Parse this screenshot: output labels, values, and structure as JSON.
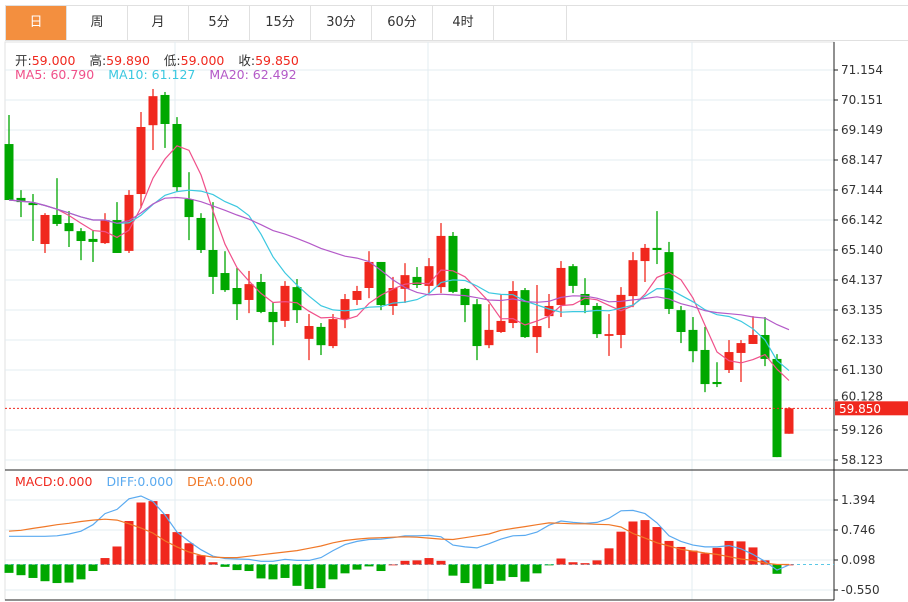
{
  "tabs": [
    {
      "label": "日",
      "active": true
    },
    {
      "label": "周",
      "active": false
    },
    {
      "label": "月",
      "active": false
    },
    {
      "label": "5分",
      "active": false
    },
    {
      "label": "15分",
      "active": false
    },
    {
      "label": "30分",
      "active": false
    },
    {
      "label": "60分",
      "active": false
    },
    {
      "label": "4时",
      "active": false
    }
  ],
  "ohlc_info": {
    "open_label": "开:",
    "open": "59.000",
    "high_label": "高:",
    "high": "59.890",
    "low_label": "低:",
    "low": "59.000",
    "close_label": "收:",
    "close": "59.850"
  },
  "ma_info": {
    "ma5": "MA5: 60.790",
    "ma10": "MA10: 61.127",
    "ma20": "MA20: 62.492"
  },
  "macd_info": {
    "macd": "MACD:0.000",
    "diff": "DIFF:0.000",
    "dea": "DEA:0.000"
  },
  "current_price_label": "59.850",
  "colors": {
    "up": "#f0281e",
    "down": "#00a800",
    "ma5": "#f0508a",
    "ma10": "#3cc8e0",
    "ma20": "#b45ac8",
    "diff": "#5aaaf0",
    "dea": "#f07828",
    "active_tab": "#f38f3f"
  },
  "chart_data": [
    {
      "type": "candlestick",
      "y_ticks": [
        "71.154",
        "70.151",
        "69.149",
        "68.147",
        "67.144",
        "66.142",
        "65.140",
        "64.137",
        "63.135",
        "62.133",
        "61.130",
        "60.128",
        "59.126",
        "58.123"
      ],
      "ylim": [
        58.123,
        71.154
      ],
      "grid": true,
      "moving_averages": [
        5,
        10,
        20
      ],
      "current_price": 59.85,
      "candles": [
        [
          68.68,
          69.65,
          66.81,
          66.81
        ],
        [
          66.88,
          67.14,
          66.24,
          66.74
        ],
        [
          66.71,
          67.01,
          65.44,
          66.64
        ],
        [
          65.34,
          66.37,
          65.04,
          66.31
        ],
        [
          66.31,
          67.54,
          65.94,
          66.01
        ],
        [
          66.04,
          66.44,
          65.24,
          65.77
        ],
        [
          65.77,
          65.87,
          64.8,
          65.44
        ],
        [
          65.51,
          65.81,
          64.74,
          65.41
        ],
        [
          65.37,
          66.37,
          65.34,
          66.14
        ],
        [
          66.14,
          66.74,
          65.04,
          65.04
        ],
        [
          65.11,
          67.14,
          65.04,
          66.98
        ],
        [
          67.01,
          69.75,
          66.54,
          69.25
        ],
        [
          69.31,
          70.52,
          68.48,
          70.28
        ],
        [
          70.32,
          70.42,
          68.55,
          69.35
        ],
        [
          69.35,
          69.58,
          67.08,
          67.24
        ],
        [
          66.84,
          67.74,
          65.47,
          66.24
        ],
        [
          66.21,
          66.37,
          65.04,
          65.14
        ],
        [
          65.14,
          66.74,
          63.67,
          64.24
        ],
        [
          64.37,
          65.1,
          63.74,
          63.8
        ],
        [
          63.87,
          64.54,
          62.8,
          63.33
        ],
        [
          63.47,
          64.44,
          63.03,
          64.0
        ],
        [
          64.07,
          64.34,
          63.03,
          63.07
        ],
        [
          63.07,
          63.4,
          61.96,
          62.73
        ],
        [
          62.77,
          64.1,
          62.57,
          63.94
        ],
        [
          63.9,
          64.17,
          62.7,
          63.13
        ],
        [
          62.17,
          63.0,
          61.46,
          62.6
        ],
        [
          62.57,
          62.7,
          61.63,
          61.96
        ],
        [
          61.93,
          63.0,
          61.86,
          62.83
        ],
        [
          62.83,
          63.67,
          62.53,
          63.5
        ],
        [
          63.47,
          63.94,
          63.3,
          63.77
        ],
        [
          63.87,
          65.1,
          63.53,
          64.74
        ],
        [
          64.74,
          64.74,
          63.13,
          63.3
        ],
        [
          63.27,
          64.24,
          62.97,
          63.87
        ],
        [
          63.84,
          64.7,
          63.37,
          64.3
        ],
        [
          64.24,
          64.57,
          63.87,
          63.97
        ],
        [
          63.94,
          64.87,
          63.7,
          64.6
        ],
        [
          63.9,
          66.04,
          63.7,
          65.61
        ],
        [
          65.61,
          65.74,
          63.7,
          63.74
        ],
        [
          63.84,
          63.87,
          62.73,
          63.3
        ],
        [
          63.33,
          63.5,
          61.46,
          61.93
        ],
        [
          61.96,
          63.33,
          61.86,
          62.47
        ],
        [
          62.4,
          63.67,
          62.37,
          62.77
        ],
        [
          62.7,
          64.1,
          62.53,
          63.77
        ],
        [
          63.8,
          63.87,
          62.2,
          62.23
        ],
        [
          62.23,
          63.97,
          61.7,
          62.6
        ],
        [
          62.93,
          63.67,
          62.53,
          63.27
        ],
        [
          63.3,
          64.77,
          62.9,
          64.54
        ],
        [
          64.6,
          64.67,
          63.7,
          63.94
        ],
        [
          63.67,
          64.2,
          63.03,
          63.3
        ],
        [
          63.27,
          63.37,
          62.2,
          62.33
        ],
        [
          62.27,
          63.0,
          61.6,
          62.33
        ],
        [
          62.3,
          63.9,
          61.86,
          63.64
        ],
        [
          63.6,
          65.07,
          63.23,
          64.8
        ],
        [
          64.77,
          65.34,
          64.07,
          65.21
        ],
        [
          65.21,
          66.44,
          64.67,
          65.14
        ],
        [
          65.07,
          65.41,
          63.0,
          63.17
        ],
        [
          63.13,
          63.27,
          62.03,
          62.4
        ],
        [
          62.47,
          62.9,
          61.39,
          61.76
        ],
        [
          61.8,
          62.57,
          60.39,
          60.66
        ],
        [
          60.73,
          61.39,
          60.56,
          60.66
        ],
        [
          61.13,
          62.13,
          61.03,
          61.73
        ],
        [
          61.7,
          62.13,
          60.73,
          62.03
        ],
        [
          62.0,
          62.93,
          62.0,
          62.3
        ],
        [
          62.3,
          62.9,
          61.26,
          61.5
        ],
        [
          61.5,
          61.66,
          58.22,
          58.22
        ],
        [
          59.0,
          59.89,
          59.0,
          59.85
        ]
      ]
    },
    {
      "type": "bar+line",
      "y_ticks": [
        "1.394",
        "0.746",
        "0.098",
        "-0.550"
      ],
      "ylim": [
        -0.55,
        1.394
      ],
      "macd": [
        -0.18,
        -0.23,
        -0.29,
        -0.36,
        -0.4,
        -0.39,
        -0.32,
        -0.14,
        0.14,
        0.39,
        0.94,
        1.34,
        1.37,
        1.09,
        0.7,
        0.46,
        0.2,
        0.05,
        -0.05,
        -0.12,
        -0.14,
        -0.3,
        -0.32,
        -0.29,
        -0.46,
        -0.53,
        -0.51,
        -0.32,
        -0.19,
        -0.11,
        -0.04,
        -0.14,
        0.0,
        0.08,
        0.09,
        0.14,
        0.08,
        -0.24,
        -0.4,
        -0.52,
        -0.42,
        -0.35,
        -0.27,
        -0.37,
        -0.19,
        -0.01,
        0.13,
        0.05,
        0.03,
        0.09,
        0.35,
        0.71,
        0.93,
        0.96,
        0.81,
        0.51,
        0.38,
        0.3,
        0.24,
        0.36,
        0.51,
        0.5,
        0.37,
        0.09,
        -0.2,
        0.0
      ],
      "diff": [
        0.61,
        0.61,
        0.61,
        0.61,
        0.62,
        0.66,
        0.72,
        0.86,
        1.1,
        1.19,
        1.42,
        1.48,
        1.36,
        1.07,
        0.7,
        0.5,
        0.32,
        0.18,
        0.13,
        0.12,
        0.11,
        0.07,
        0.07,
        0.11,
        0.09,
        0.09,
        0.15,
        0.3,
        0.43,
        0.5,
        0.54,
        0.55,
        0.58,
        0.62,
        0.62,
        0.63,
        0.6,
        0.42,
        0.38,
        0.36,
        0.45,
        0.55,
        0.62,
        0.63,
        0.7,
        0.85,
        0.94,
        0.91,
        0.89,
        0.91,
        1.0,
        1.16,
        1.17,
        1.1,
        0.9,
        0.62,
        0.5,
        0.42,
        0.38,
        0.38,
        0.41,
        0.34,
        0.22,
        0.07,
        -0.12,
        -0.01
      ],
      "dea": [
        0.72,
        0.74,
        0.78,
        0.82,
        0.86,
        0.89,
        0.93,
        0.96,
        0.98,
        0.96,
        0.88,
        0.79,
        0.68,
        0.51,
        0.38,
        0.27,
        0.2,
        0.16,
        0.15,
        0.15,
        0.18,
        0.21,
        0.24,
        0.27,
        0.3,
        0.35,
        0.4,
        0.47,
        0.52,
        0.55,
        0.57,
        0.58,
        0.59,
        0.6,
        0.59,
        0.57,
        0.55,
        0.54,
        0.58,
        0.62,
        0.66,
        0.74,
        0.78,
        0.82,
        0.86,
        0.9,
        0.89,
        0.88,
        0.88,
        0.87,
        0.86,
        0.81,
        0.67,
        0.57,
        0.47,
        0.4,
        0.33,
        0.29,
        0.25,
        0.22,
        0.17,
        0.12,
        0.09,
        0.03,
        0.0,
        0.0
      ]
    }
  ]
}
